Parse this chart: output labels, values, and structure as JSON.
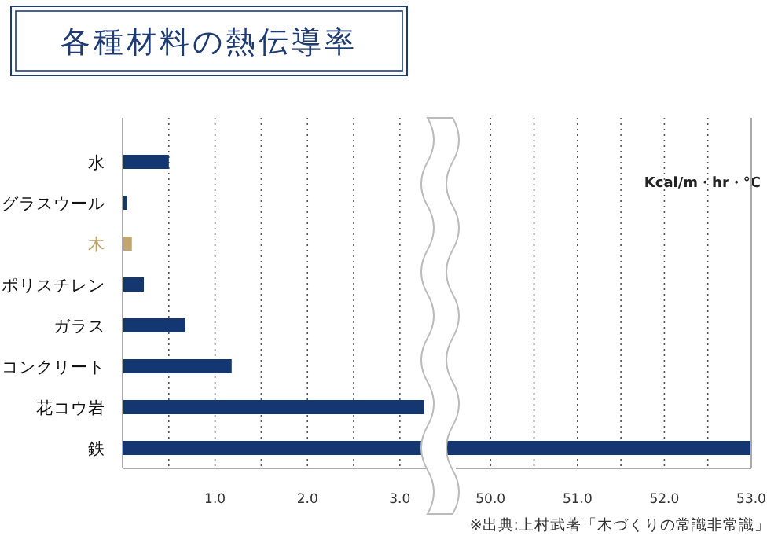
{
  "chart_data": [
    {
      "type": "bar",
      "orientation": "horizontal",
      "title": "各種材料の熱伝導率",
      "categories": [
        "水",
        "グラスウール",
        "木",
        "ポリスチレン",
        "ガラス",
        "コンクリート",
        "花コウ岩",
        "鉄"
      ],
      "values": [
        0.5,
        0.05,
        0.1,
        0.23,
        0.68,
        1.18,
        3.26,
        null
      ],
      "color": "#143772",
      "colors": [
        "#143772",
        "#143772",
        "#c2a56a",
        "#143772",
        "#143772",
        "#143772",
        "#143772",
        "#143772"
      ],
      "xlim": [
        0,
        3.35
      ],
      "xticks": [
        {
          "value": 0.5,
          "label": null
        },
        {
          "value": 1,
          "label": "1.0"
        },
        {
          "value": 1.5,
          "label": null
        },
        {
          "value": 2,
          "label": "2.0"
        },
        {
          "value": 2.5,
          "label": null
        },
        {
          "value": 3,
          "label": "3.0"
        }
      ],
      "grid": "x",
      "annotations": [
        "Kcal/m・hr・°C",
        "※出典:上村武著「木づくりの常識非常識」"
      ]
    },
    {
      "type": "bar",
      "orientation": "horizontal",
      "categories": [
        "水",
        "グラスウール",
        "木",
        "ポリスチレン",
        "ガラス",
        "コンクリート",
        "花コウ岩",
        "鉄"
      ],
      "values": [
        null,
        null,
        null,
        null,
        null,
        null,
        null,
        53
      ],
      "color": "#143772",
      "xlim": [
        49.6,
        53
      ],
      "xticks": [
        {
          "value": 50,
          "label": "50.0"
        },
        {
          "value": 50.5,
          "label": null
        },
        {
          "value": 51,
          "label": "51.0"
        },
        {
          "value": 51.5,
          "label": null
        },
        {
          "value": 52,
          "label": "52.0"
        },
        {
          "value": 52.5,
          "label": null
        },
        {
          "value": 53,
          "label": "53.0"
        }
      ],
      "grid": "x",
      "tick_labels": "x"
    }
  ]
}
